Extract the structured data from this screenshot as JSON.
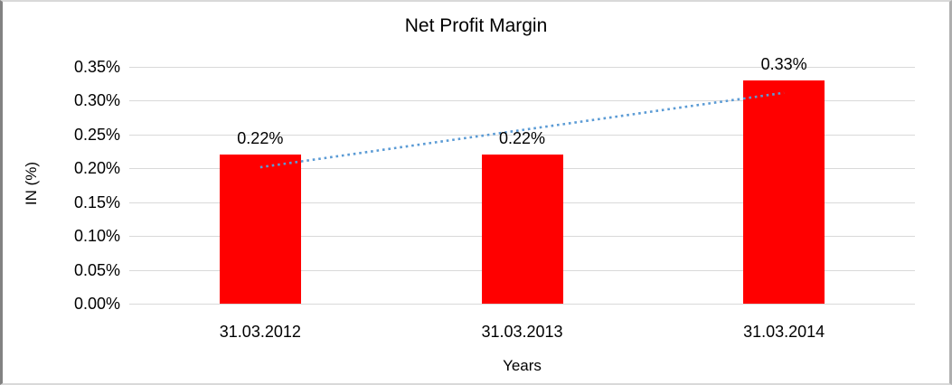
{
  "chart_data": {
    "type": "bar",
    "title": "Net Profit Margin",
    "xlabel": "Years",
    "ylabel": "IN (%)",
    "categories": [
      "31.03.2012",
      "31.03.2013",
      "31.03.2014"
    ],
    "values": [
      0.22,
      0.22,
      0.33
    ],
    "data_labels": [
      "0.22%",
      "0.22%",
      "0.33%"
    ],
    "y_ticks": [
      "0.00%",
      "0.05%",
      "0.10%",
      "0.15%",
      "0.20%",
      "0.25%",
      "0.30%",
      "0.35%"
    ],
    "ylim": [
      0,
      0.35
    ],
    "grid": true,
    "legend_position": "none",
    "bar_color": "#ff0000",
    "gridline_color": "#d9d9d9",
    "trendline": {
      "type": "linear",
      "style": "dotted",
      "color": "#5b9bd5"
    }
  }
}
